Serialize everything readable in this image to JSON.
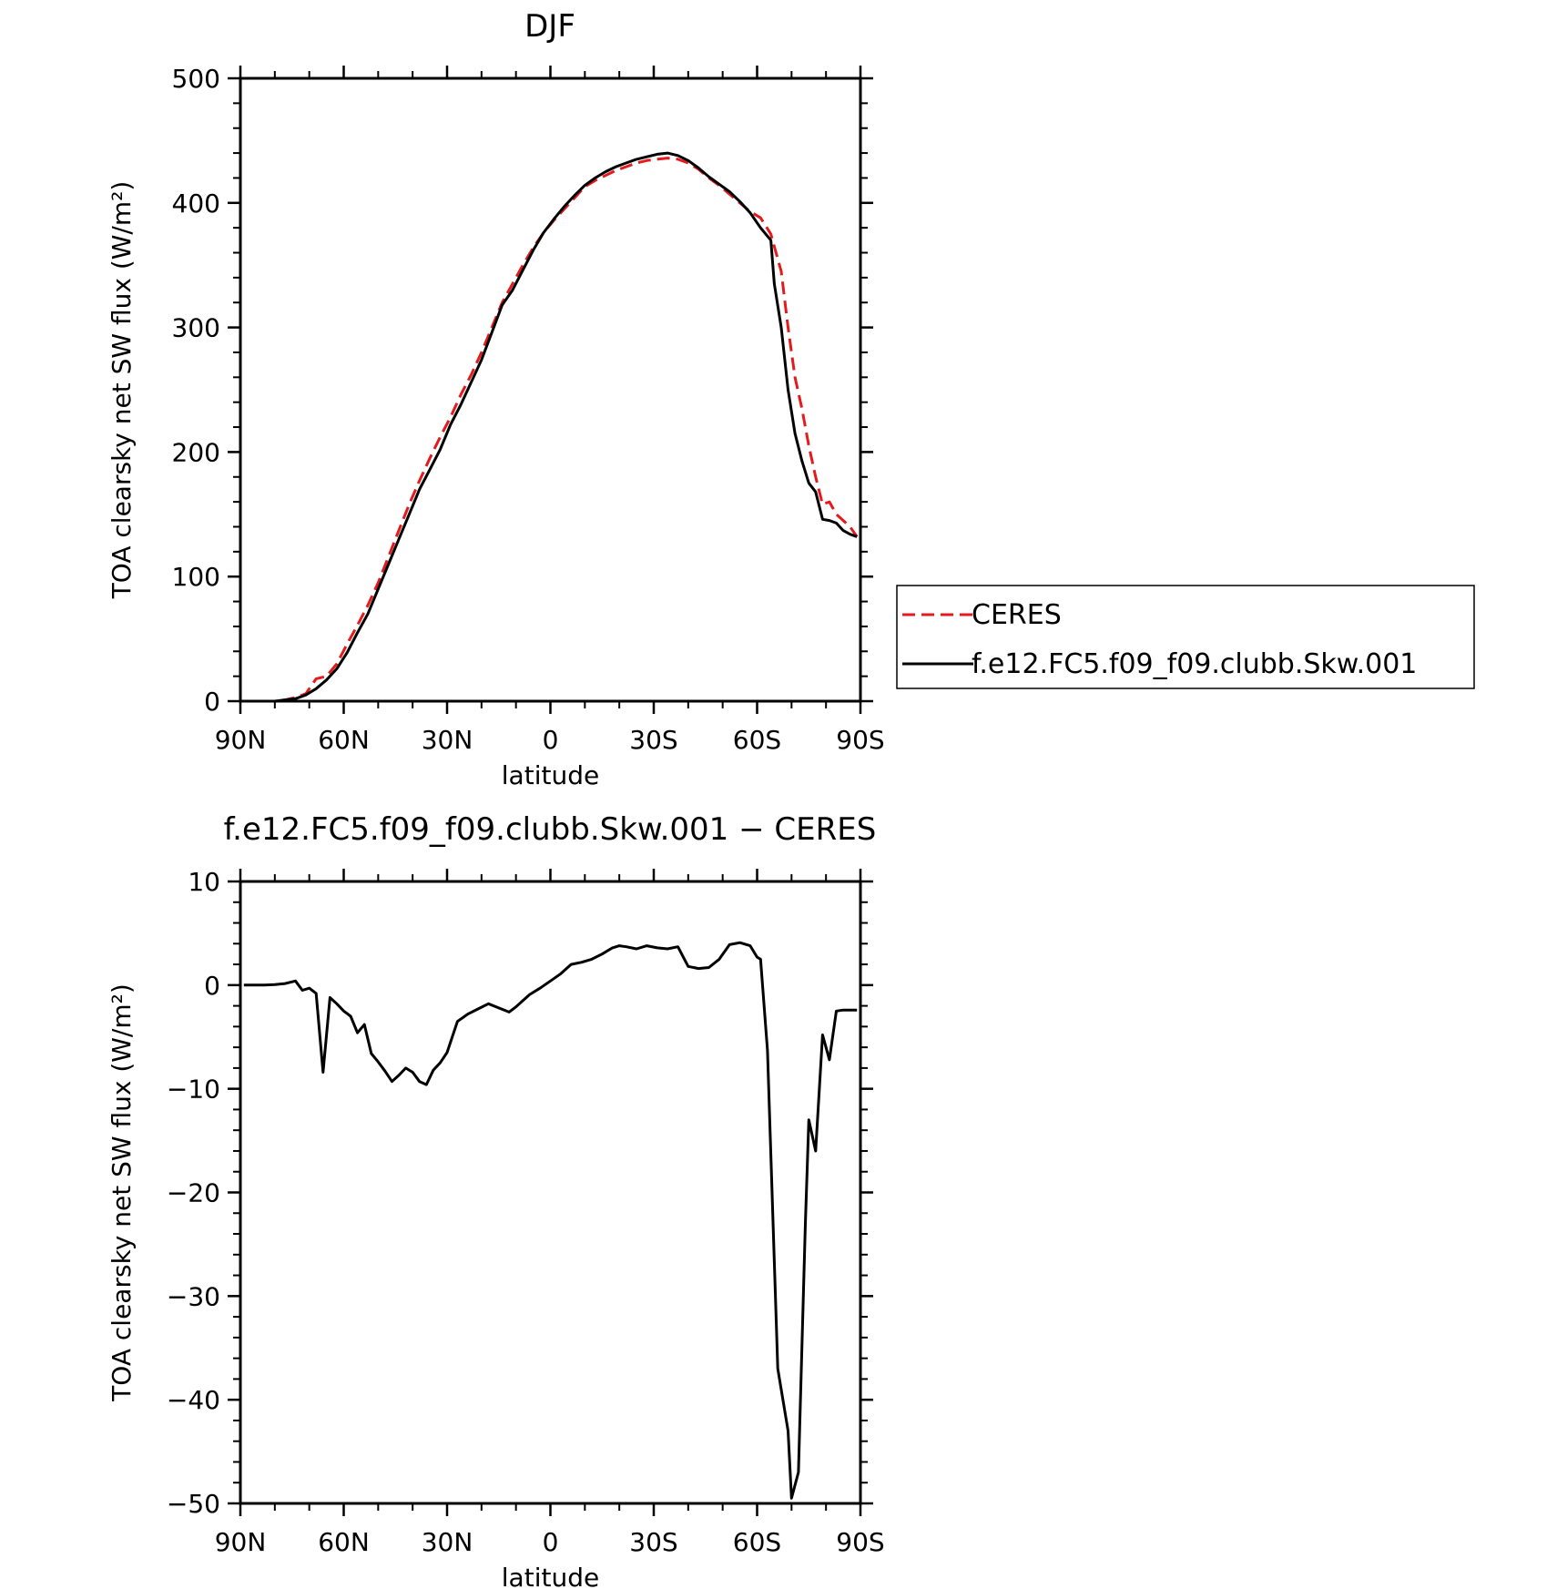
{
  "chart_data": [
    {
      "type": "line",
      "title": "DJF",
      "xlabel": "latitude",
      "ylabel": "TOA clearsky net SW flux (W/m²)",
      "xlim": [
        -90,
        90
      ],
      "ylim": [
        0,
        500
      ],
      "x_ticks": [
        -90,
        -60,
        -30,
        0,
        30,
        60,
        90
      ],
      "x_tick_labels": [
        "90N",
        "60N",
        "30N",
        "0",
        "30S",
        "60S",
        "90S"
      ],
      "y_ticks": [
        0,
        100,
        200,
        300,
        400,
        500
      ],
      "y_tick_labels": [
        "0",
        "100",
        "200",
        "300",
        "400",
        "500"
      ],
      "legend_position": "outside-right",
      "series": [
        {
          "name": "CERES",
          "color": "#e41a1c",
          "dash": "dashed",
          "x": [
            -89,
            -86,
            -83,
            -80,
            -77,
            -74,
            -71,
            -68,
            -65,
            -62,
            -59,
            -56,
            -53,
            -50,
            -47,
            -44,
            -41,
            -38,
            -35,
            -32,
            -29,
            -26,
            -23,
            -20,
            -17,
            -14,
            -11,
            -8,
            -5,
            -2,
            1,
            4,
            7,
            10,
            13,
            16,
            19,
            22,
            25,
            28,
            31,
            34,
            37,
            40,
            43,
            46,
            49,
            52,
            55,
            58,
            61,
            64,
            65,
            67,
            69,
            71,
            73,
            75,
            77,
            79,
            81,
            83,
            85,
            87,
            89
          ],
          "values": [
            0,
            0,
            0,
            0,
            1,
            3,
            6,
            18,
            20,
            30,
            46,
            61,
            77,
            95,
            116,
            137,
            158,
            177,
            195,
            212,
            228,
            246,
            262,
            280,
            300,
            320,
            335,
            350,
            364,
            376,
            386,
            395,
            404,
            413,
            418,
            422,
            426,
            429,
            432,
            434,
            435,
            436,
            435,
            432,
            427,
            420,
            414,
            407,
            400,
            393,
            388,
            375,
            365,
            345,
            300,
            260,
            235,
            205,
            180,
            158,
            160,
            150,
            145,
            140,
            132
          ]
        },
        {
          "name": "f.e12.FC5.f09_f09.clubb.Skw.001",
          "color": "#000000",
          "dash": "solid",
          "x": [
            -89,
            -86,
            -83,
            -80,
            -77,
            -74,
            -71,
            -68,
            -65,
            -62,
            -59,
            -56,
            -53,
            -50,
            -47,
            -44,
            -41,
            -38,
            -35,
            -32,
            -29,
            -26,
            -23,
            -20,
            -17,
            -14,
            -11,
            -8,
            -5,
            -2,
            1,
            4,
            7,
            10,
            13,
            16,
            19,
            22,
            25,
            28,
            31,
            34,
            37,
            40,
            43,
            46,
            49,
            52,
            55,
            58,
            61,
            64,
            65,
            67,
            69,
            71,
            73,
            75,
            77,
            79,
            81,
            83,
            85,
            87,
            89
          ],
          "values": [
            0,
            0,
            0,
            0,
            1,
            2,
            5,
            10,
            17,
            26,
            39,
            55,
            70,
            90,
            110,
            130,
            150,
            170,
            186,
            202,
            222,
            238,
            256,
            274,
            296,
            318,
            330,
            346,
            362,
            376,
            387,
            397,
            406,
            414,
            420,
            425,
            429,
            432,
            435,
            437,
            439,
            440,
            438,
            434,
            428,
            421,
            415,
            409,
            401,
            392,
            380,
            370,
            335,
            300,
            250,
            215,
            193,
            175,
            168,
            146,
            145,
            143,
            137,
            134,
            132
          ]
        }
      ]
    },
    {
      "type": "line",
      "title": "f.e12.FC5.f09_f09.clubb.Skw.001 − CERES",
      "xlabel": "latitude",
      "ylabel": "TOA clearsky net SW flux (W/m²)",
      "xlim": [
        -90,
        90
      ],
      "ylim": [
        -50,
        10
      ],
      "x_ticks": [
        -90,
        -60,
        -30,
        0,
        30,
        60,
        90
      ],
      "x_tick_labels": [
        "90N",
        "60N",
        "30N",
        "0",
        "30S",
        "60S",
        "90S"
      ],
      "y_ticks": [
        -50,
        -40,
        -30,
        -20,
        -10,
        0,
        10
      ],
      "y_tick_labels": [
        "−50",
        "−40",
        "−30",
        "−20",
        "−10",
        "0",
        "10"
      ],
      "series": [
        {
          "name": "",
          "color": "#000000",
          "dash": "solid",
          "x": [
            -89,
            -86,
            -83,
            -80,
            -77,
            -74,
            -72,
            -70,
            -68,
            -66,
            -64,
            -62,
            -60,
            -58,
            -56,
            -54,
            -52,
            -50,
            -48,
            -46,
            -44,
            -42,
            -40,
            -38,
            -36,
            -34,
            -32,
            -30,
            -27,
            -24,
            -21,
            -18,
            -15,
            -12,
            -10,
            -8,
            -6,
            -3,
            0,
            3,
            6,
            9,
            12,
            15,
            18,
            20,
            22,
            25,
            28,
            31,
            34,
            37,
            40,
            43,
            46,
            49,
            52,
            55,
            58,
            60,
            61,
            63,
            66,
            69,
            70,
            72,
            74,
            75,
            77,
            79,
            81,
            83,
            85,
            87,
            89
          ],
          "values": [
            0,
            0,
            0,
            0.05,
            0.15,
            0.4,
            -0.5,
            -0.3,
            -0.8,
            -8.4,
            -1.2,
            -1.8,
            -2.5,
            -3.0,
            -4.6,
            -3.8,
            -6.6,
            -7.4,
            -8.3,
            -9.3,
            -8.7,
            -8.0,
            -8.4,
            -9.3,
            -9.6,
            -8.2,
            -7.5,
            -6.5,
            -3.5,
            -2.8,
            -2.3,
            -1.8,
            -2.2,
            -2.6,
            -2.1,
            -1.5,
            -0.9,
            -0.3,
            0.4,
            1.1,
            2.0,
            2.2,
            2.5,
            3.0,
            3.6,
            3.8,
            3.7,
            3.5,
            3.8,
            3.6,
            3.5,
            3.7,
            1.8,
            1.6,
            1.7,
            2.5,
            3.9,
            4.1,
            3.8,
            2.7,
            2.5,
            -6.3,
            -37,
            -43,
            -49.5,
            -47,
            -23,
            -13,
            -16,
            -4.8,
            -7.2,
            -2.5,
            -2.4,
            -2.4,
            -2.4
          ]
        }
      ]
    }
  ]
}
